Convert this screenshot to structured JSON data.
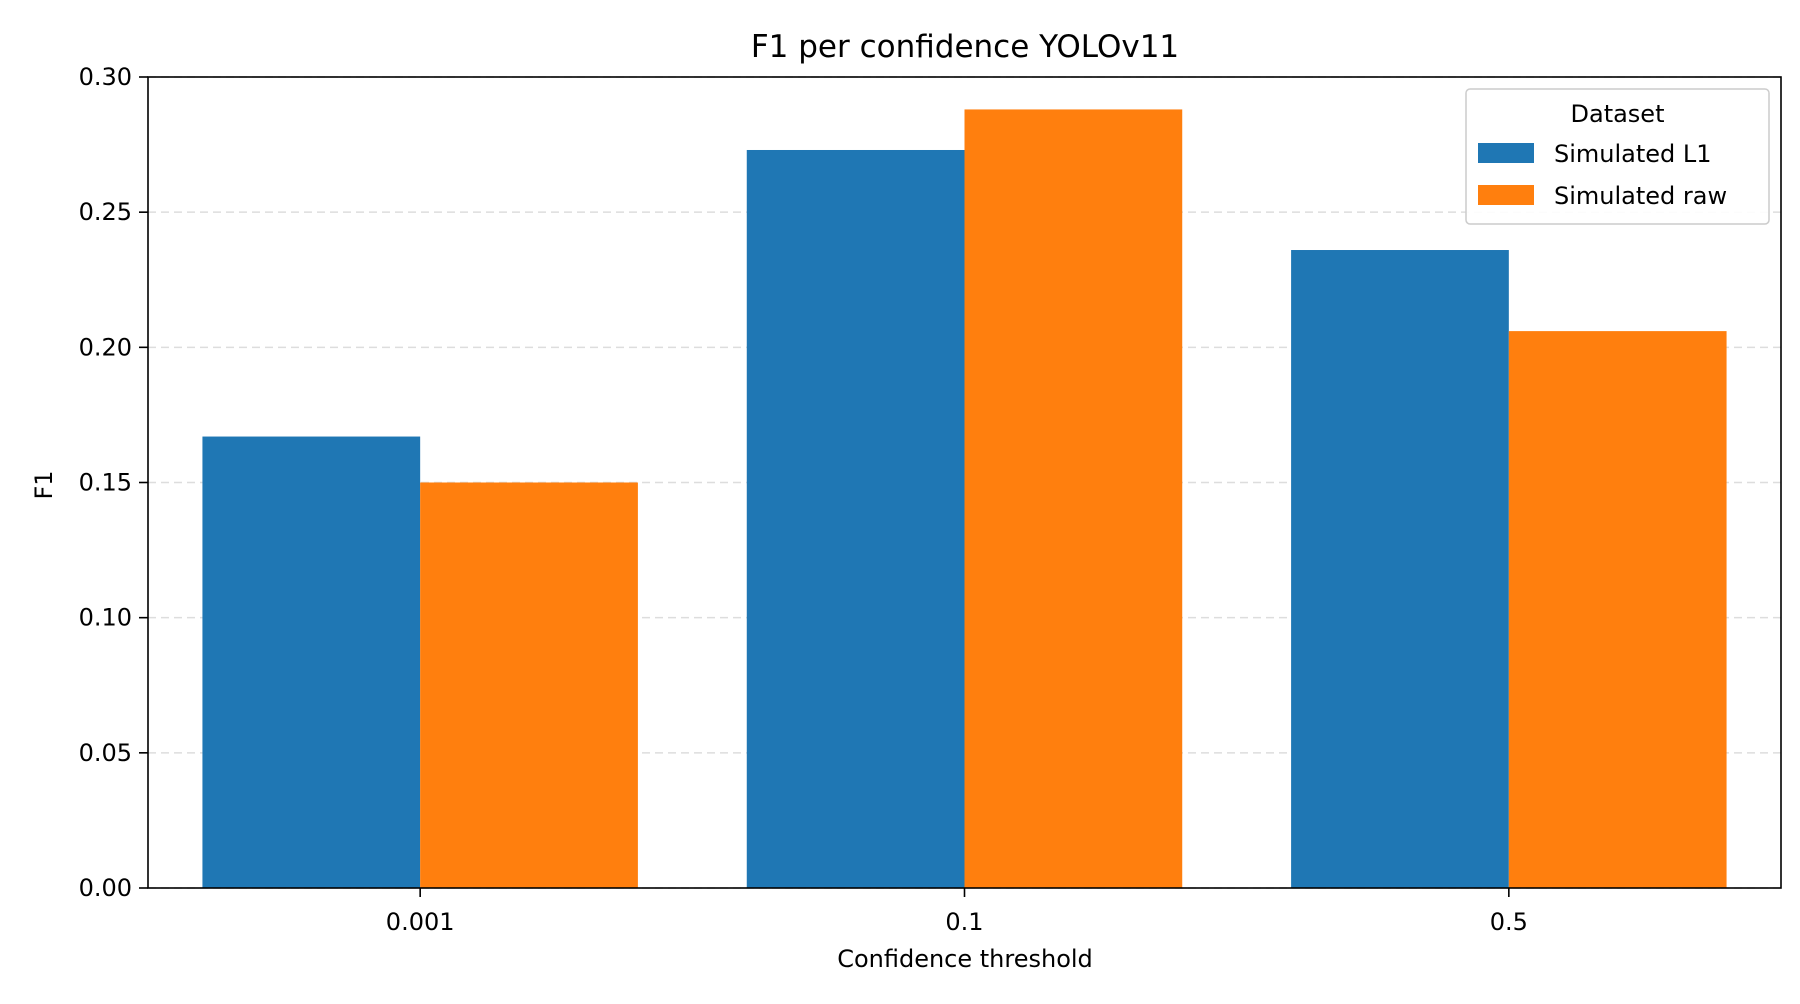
{
  "chart_data": {
    "type": "bar",
    "title": "F1 per confidence YOLOv11",
    "xlabel": "Confidence threshold",
    "ylabel": "F1",
    "categories": [
      "0.001",
      "0.1",
      "0.5"
    ],
    "series": [
      {
        "name": "Simulated L1",
        "color": "#1f77b4",
        "values": [
          0.167,
          0.273,
          0.236
        ]
      },
      {
        "name": "Simulated raw",
        "color": "#ff7f0e",
        "values": [
          0.15,
          0.288,
          0.206
        ]
      }
    ],
    "ylim": [
      0,
      0.3
    ],
    "yticks": [
      0.0,
      0.05,
      0.1,
      0.15,
      0.2,
      0.25,
      0.3
    ],
    "ytick_labels": [
      "0.00",
      "0.05",
      "0.10",
      "0.15",
      "0.20",
      "0.25",
      "0.30"
    ],
    "grid": true,
    "legend": {
      "title": "Dataset",
      "position": "top-right"
    }
  }
}
